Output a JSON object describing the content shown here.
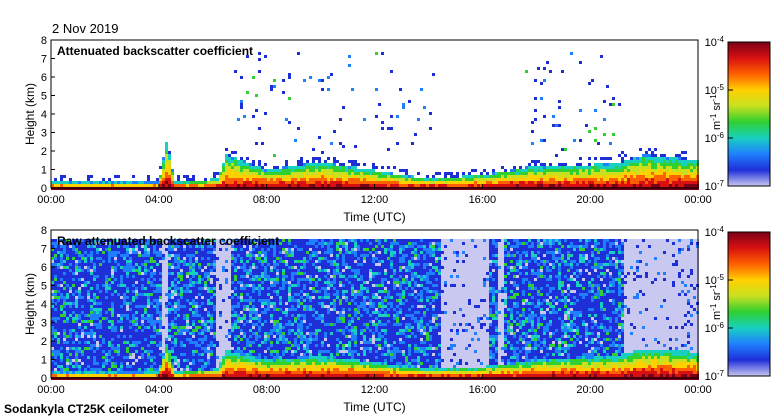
{
  "date": "2 Nov 2019",
  "footer": "Sodankyla CT25K ceilometer",
  "colors": {
    "colormap": [
      "#c8c8f0",
      "#1f2fd8",
      "#1f80ff",
      "#18d0c0",
      "#30d030",
      "#c8e020",
      "#ffd000",
      "#ff6000",
      "#d81010",
      "#7a0018"
    ]
  },
  "chart_data": [
    {
      "type": "heatmap",
      "title": "Attenuated backscatter coefficient",
      "xlabel": "Time (UTC)",
      "ylabel": "Height (km)",
      "x_ticks": [
        "00:00",
        "04:00",
        "08:00",
        "12:00",
        "16:00",
        "20:00",
        "00:00"
      ],
      "y_ticks": [
        "0",
        "1",
        "2",
        "3",
        "4",
        "5",
        "6",
        "7",
        "8"
      ],
      "xlim": [
        0,
        24
      ],
      "ylim": [
        0,
        8
      ],
      "colorbar": {
        "scale": "log",
        "range": [
          1e-07,
          0.0001
        ],
        "ticks": [
          {
            "base": "10",
            "exp": "-4"
          },
          {
            "base": "10",
            "exp": "-5"
          },
          {
            "base": "10",
            "exp": "-6"
          },
          {
            "base": "10",
            "exp": "-7"
          }
        ],
        "unit": {
          "m": "m",
          "m_exp": "-1",
          "sr": " sr",
          "sr_exp": "-1"
        }
      },
      "features": {
        "surface_layer_top_km": [
          [
            0,
            0.3
          ],
          [
            4,
            0.3
          ],
          [
            4.3,
            2.6
          ],
          [
            4.6,
            0.3
          ],
          [
            6.2,
            0.5
          ],
          [
            6.5,
            1.8
          ],
          [
            8,
            1.0
          ],
          [
            10,
            1.4
          ],
          [
            14,
            0.5
          ],
          [
            16,
            0.7
          ],
          [
            18,
            1.2
          ],
          [
            21,
            1.3
          ],
          [
            22,
            1.8
          ],
          [
            24,
            1.5
          ]
        ],
        "sparse_cloud_intervals_h": [
          [
            6.8,
            14.2
          ],
          [
            17.5,
            21.5
          ]
        ]
      }
    },
    {
      "type": "heatmap",
      "title": "Raw attenuated backscatter coefficient",
      "xlabel": "Time (UTC)",
      "ylabel": "Height (km)",
      "x_ticks": [
        "00:00",
        "04:00",
        "08:00",
        "12:00",
        "16:00",
        "20:00",
        "00:00"
      ],
      "y_ticks": [
        "0",
        "1",
        "2",
        "3",
        "4",
        "5",
        "6",
        "7",
        "8"
      ],
      "xlim": [
        0,
        24
      ],
      "ylim": [
        0,
        8
      ],
      "colorbar": {
        "scale": "log",
        "range": [
          1e-07,
          0.0001
        ],
        "ticks": [
          {
            "base": "10",
            "exp": "-4"
          },
          {
            "base": "10",
            "exp": "-5"
          },
          {
            "base": "10",
            "exp": "-6"
          },
          {
            "base": "10",
            "exp": "-7"
          }
        ],
        "unit": {
          "m": "m",
          "m_exp": "-1",
          "sr": " sr",
          "sr_exp": "-1"
        }
      },
      "features": {
        "noise_top_km": 7.5,
        "low_signal_intervals_h": [
          [
            4.1,
            4.3
          ],
          [
            6.1,
            6.7
          ],
          [
            14.5,
            16.3
          ],
          [
            16.6,
            16.8
          ],
          [
            21.3,
            21.6
          ],
          [
            21.6,
            24
          ]
        ],
        "surface_layer_top_km": [
          [
            0,
            0.3
          ],
          [
            4,
            0.3
          ],
          [
            4.3,
            2.0
          ],
          [
            4.6,
            0.3
          ],
          [
            6.2,
            0.5
          ],
          [
            6.5,
            1.5
          ],
          [
            8,
            1.0
          ],
          [
            10,
            1.2
          ],
          [
            14,
            0.5
          ],
          [
            16,
            0.6
          ],
          [
            18,
            1.0
          ],
          [
            21,
            1.2
          ],
          [
            22,
            1.6
          ],
          [
            24,
            1.4
          ]
        ]
      }
    }
  ]
}
